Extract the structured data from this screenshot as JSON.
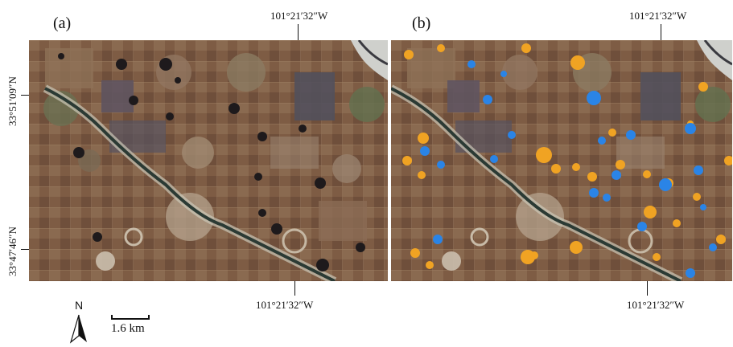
{
  "panel_a": {
    "label": "(a)"
  },
  "panel_b": {
    "label": "(b)"
  },
  "coordinates": {
    "top_a_longitude": "101°21′32″W",
    "top_b_longitude": "101°21′32″W",
    "bottom_a_longitude": "101°21′32″W",
    "bottom_b_longitude": "101°21′32″W",
    "upper_latitude": "33°51′09″N",
    "lower_latitude": "33°47′46″N"
  },
  "north_arrow": {
    "label": "N",
    "icon": "north-arrow-icon"
  },
  "scale_bar": {
    "label": "1.6 km"
  },
  "colors": {
    "soil_brown": "#7a5a43",
    "orange_class": "#f0a323",
    "blue_class": "#2a84e6",
    "dark_water": "#1e1a1c"
  }
}
